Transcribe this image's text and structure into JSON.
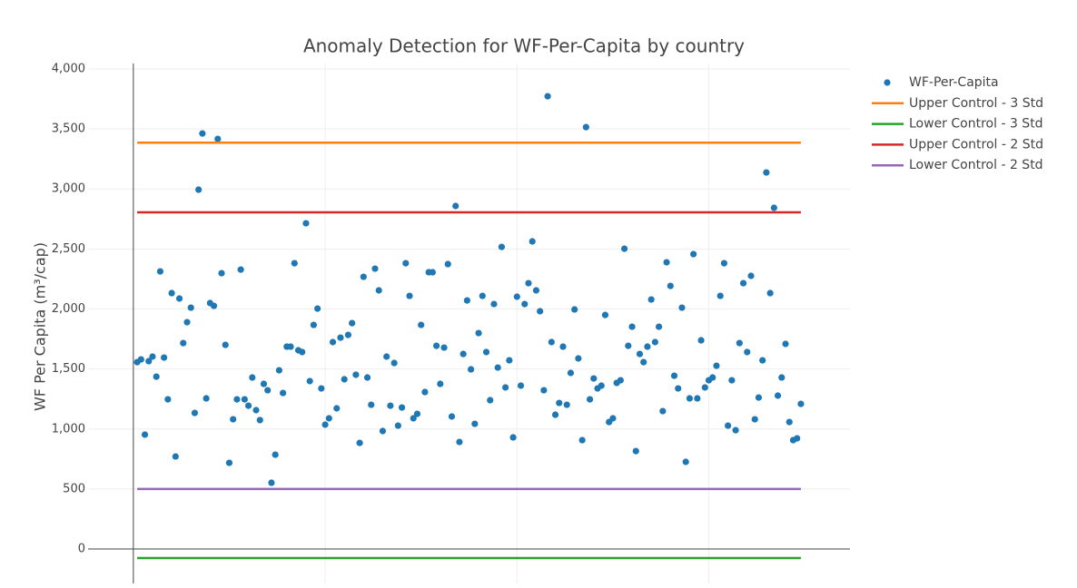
{
  "chart_data": {
    "type": "scatter",
    "title": "Anomaly Detection for WF-Per-Capita by country",
    "y_label": "WF Per Capita (m³/cap)",
    "xlim": [
      -11.8,
      186.8
    ],
    "xticks": [
      0,
      50,
      100,
      150
    ],
    "ylim": [
      -287,
      4045
    ],
    "yticks": [
      0,
      500,
      {
        "value": 1000,
        "label": "1,000"
      },
      {
        "value": 1500,
        "label": "1,500"
      },
      {
        "value": 2000,
        "label": "2,000"
      },
      {
        "value": 2500,
        "label": "2,500"
      },
      {
        "value": 3000,
        "label": "3,000"
      },
      {
        "value": 3500,
        "label": "3,500"
      },
      {
        "value": 4000,
        "label": "4,000"
      }
    ],
    "grid": true,
    "legend": "right",
    "series": [
      {
        "name": "WF-Per-Capita",
        "color": "#1f77b4",
        "mode": "markers",
        "x": [
          1,
          2,
          3,
          4,
          5,
          6,
          7,
          8,
          9,
          10,
          11,
          12,
          13,
          14,
          15,
          16,
          17,
          18,
          19,
          20,
          21,
          22,
          23,
          24,
          25,
          26,
          27,
          28,
          29,
          30,
          31,
          32,
          33,
          34,
          35,
          36,
          37,
          38,
          39,
          40,
          41,
          42,
          43,
          44,
          45,
          46,
          47,
          48,
          49,
          50,
          51,
          52,
          53,
          54,
          55,
          56,
          57,
          58,
          59,
          60,
          61,
          62,
          63,
          64,
          65,
          66,
          67,
          68,
          69,
          70,
          71,
          72,
          73,
          74,
          75,
          76,
          77,
          78,
          79,
          80,
          81,
          82,
          83,
          84,
          85,
          86,
          87,
          88,
          89,
          90,
          91,
          92,
          93,
          94,
          95,
          96,
          97,
          98,
          99,
          100,
          101,
          102,
          103,
          104,
          105,
          106,
          107,
          108,
          109,
          110,
          111,
          112,
          113,
          114,
          115,
          116,
          117,
          118,
          119,
          120,
          121,
          122,
          123,
          124,
          125,
          126,
          127,
          128,
          129,
          130,
          131,
          132,
          133,
          134,
          135,
          136,
          137,
          138,
          139,
          140,
          141,
          142,
          143,
          144,
          145,
          146,
          147,
          148,
          149,
          150,
          151,
          152,
          153,
          154,
          155,
          156,
          157,
          158,
          159,
          160,
          161,
          162,
          163,
          164,
          165,
          166,
          167,
          168,
          169,
          170,
          171,
          172,
          173,
          174
        ],
        "values": [
          1557,
          1580,
          953,
          1565,
          1603,
          1436,
          2313,
          1595,
          1247,
          2132,
          771,
          2087,
          1716,
          1890,
          2011,
          1134,
          2994,
          3462,
          1255,
          2049,
          2026,
          3417,
          2298,
          1701,
          718,
          1081,
          1247,
          2328,
          1247,
          1194,
          1429,
          1157,
          1074,
          1376,
          1323,
          552,
          786,
          1489,
          1300,
          1686,
          1686,
          2381,
          1656,
          1641,
          2714,
          1399,
          1867,
          2003,
          1338,
          1036,
          1089,
          1724,
          1172,
          1761,
          1414,
          1784,
          1882,
          1452,
          884,
          2268,
          1429,
          1202,
          2336,
          2155,
          983,
          1603,
          1194,
          1550,
          1028,
          1179,
          2381,
          2109,
          1089,
          1126,
          1867,
          1308,
          2306,
          2306,
          1693,
          1376,
          1678,
          2374,
          1104,
          2858,
          892,
          1625,
          2071,
          1497,
          1043,
          1799,
          2109,
          1641,
          1240,
          2041,
          1512,
          2517,
          1346,
          1572,
          930,
          2102,
          1361,
          2041,
          2215,
          2563,
          2155,
          1981,
          1323,
          3772,
          1724,
          1119,
          1217,
          1686,
          1202,
          1467,
          1996,
          1588,
          907,
          3515,
          1247,
          1421,
          1338,
          1361,
          1950,
          1058,
          1089,
          1384,
          1406,
          2502,
          1693,
          1852,
          816,
          1625,
          1557,
          1686,
          2079,
          1724,
          1852,
          1149,
          2389,
          2192,
          1444,
          1338,
          2011,
          726,
          1255,
          2457,
          1255,
          1739,
          1346,
          1406,
          1429,
          1527,
          2109,
          2381,
          1028,
          1406,
          990,
          1716,
          2215,
          1641,
          2276,
          1081,
          1262,
          1572,
          3137,
          2132,
          2843,
          1278,
          1429,
          1709,
          1058,
          907,
          922,
          1209
        ]
      },
      {
        "name": "Upper Control - 3 Std",
        "color": "#ff7f0e",
        "mode": "lines",
        "x": [
          1,
          174
        ],
        "values": [
          3385,
          3385
        ]
      },
      {
        "name": "Lower Control - 3 Std",
        "color": "#2ca02c",
        "mode": "lines",
        "x": [
          1,
          174
        ],
        "values": [
          -75,
          -75
        ]
      },
      {
        "name": "Upper Control - 2 Std",
        "color": "#d62728",
        "mode": "lines",
        "x": [
          1,
          174
        ],
        "values": [
          2805,
          2805
        ]
      },
      {
        "name": "Lower Control - 2 Std",
        "color": "#9467bd",
        "mode": "lines",
        "x": [
          1,
          174
        ],
        "values": [
          500,
          500
        ]
      }
    ]
  }
}
